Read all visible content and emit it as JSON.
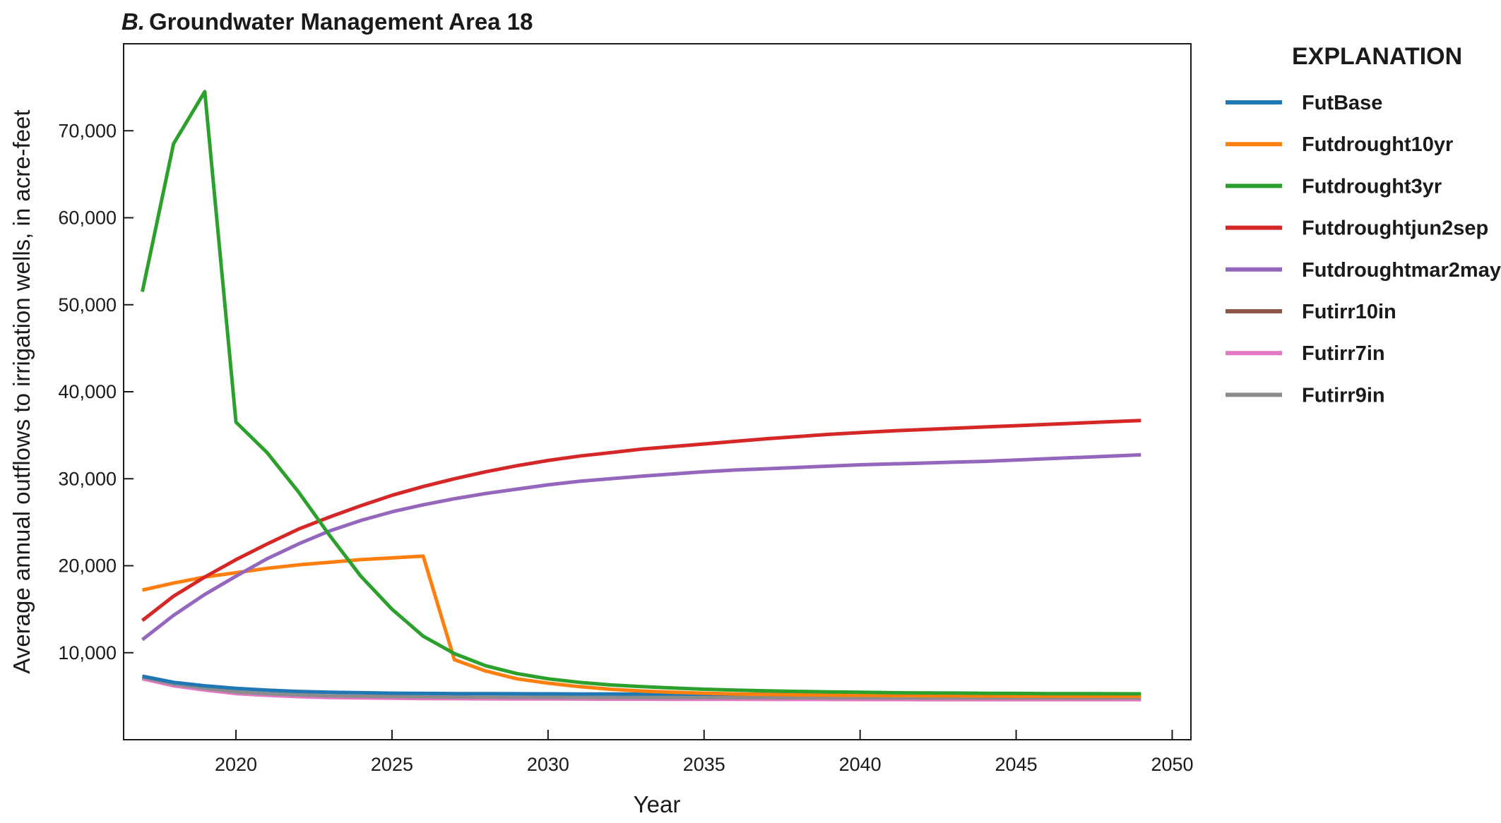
{
  "chart_data": {
    "type": "line",
    "title_prefix": "B.",
    "title": "Groundwater Management Area 18",
    "xlabel": "Year",
    "ylabel": "Average annual outflows to irrigation wells, in acre-feet",
    "xlim": [
      2016.4,
      2050.6
    ],
    "ylim": [
      0,
      80000
    ],
    "xticks": [
      2020,
      2025,
      2030,
      2035,
      2040,
      2045,
      2050
    ],
    "yticks": [
      10000,
      20000,
      30000,
      40000,
      50000,
      60000,
      70000
    ],
    "xtick_labels": [
      "2020",
      "2025",
      "2030",
      "2035",
      "2040",
      "2045",
      "2050"
    ],
    "ytick_labels": [
      "10,000",
      "20,000",
      "30,000",
      "40,000",
      "50,000",
      "60,000",
      "70,000"
    ],
    "legend_title": "EXPLANATION",
    "legend_position": "right",
    "x": [
      2017,
      2018,
      2019,
      2020,
      2021,
      2022,
      2023,
      2024,
      2025,
      2026,
      2027,
      2028,
      2029,
      2030,
      2031,
      2032,
      2033,
      2034,
      2035,
      2036,
      2037,
      2038,
      2039,
      2040,
      2041,
      2042,
      2043,
      2044,
      2045,
      2046,
      2047,
      2048,
      2049
    ],
    "series": [
      {
        "name": "FutBase",
        "color": "#1f77b4",
        "values": [
          7300,
          6600,
          6200,
          5900,
          5700,
          5550,
          5450,
          5400,
          5350,
          5320,
          5300,
          5290,
          5280,
          5270,
          5260,
          5250,
          5245,
          5240,
          5235,
          5230,
          5225,
          5220,
          5215,
          5210,
          5205,
          5200,
          5200,
          5200,
          5200,
          5200,
          5200,
          5200,
          5200
        ]
      },
      {
        "name": "Futdrought10yr",
        "color": "#ff7f0e",
        "values": [
          17200,
          18000,
          18700,
          19200,
          19700,
          20100,
          20400,
          20700,
          20900,
          21100,
          9200,
          7900,
          7000,
          6500,
          6100,
          5800,
          5600,
          5450,
          5350,
          5250,
          5200,
          5150,
          5120,
          5100,
          5080,
          5060,
          5050,
          5040,
          5030,
          5020,
          5010,
          5005,
          5000
        ]
      },
      {
        "name": "Futdrought3yr",
        "color": "#2ca02c",
        "values": [
          51500,
          68500,
          74500,
          36500,
          33000,
          28500,
          23500,
          18800,
          15000,
          11900,
          9900,
          8500,
          7600,
          7000,
          6600,
          6300,
          6100,
          5950,
          5800,
          5700,
          5620,
          5550,
          5500,
          5450,
          5400,
          5380,
          5360,
          5340,
          5320,
          5300,
          5290,
          5280,
          5270
        ]
      },
      {
        "name": "Futdroughtjun2sep",
        "color": "#d62728",
        "values": [
          13700,
          16500,
          18700,
          20700,
          22500,
          24200,
          25600,
          26900,
          28100,
          29100,
          30000,
          30800,
          31500,
          32100,
          32600,
          33000,
          33400,
          33700,
          34000,
          34300,
          34600,
          34850,
          35100,
          35300,
          35500,
          35650,
          35800,
          35950,
          36100,
          36250,
          36400,
          36550,
          36700
        ]
      },
      {
        "name": "Futdroughtmar2may",
        "color": "#9467bd",
        "values": [
          11500,
          14300,
          16700,
          18800,
          20800,
          22500,
          24000,
          25200,
          26200,
          27000,
          27700,
          28300,
          28800,
          29300,
          29700,
          30000,
          30300,
          30550,
          30800,
          31000,
          31150,
          31300,
          31450,
          31600,
          31700,
          31800,
          31900,
          32000,
          32150,
          32300,
          32450,
          32600,
          32750
        ]
      },
      {
        "name": "Futirr10in",
        "color": "#8c564b",
        "values": [
          7100,
          6300,
          5800,
          5400,
          5200,
          5050,
          4950,
          4900,
          4860,
          4830,
          4810,
          4800,
          4790,
          4780,
          4770,
          4760,
          4755,
          4750,
          4745,
          4740,
          4735,
          4730,
          4725,
          4720,
          4715,
          4710,
          4710,
          4710,
          4710,
          4710,
          4710,
          4710,
          4710
        ]
      },
      {
        "name": "Futirr7in",
        "color": "#e377c2",
        "values": [
          7000,
          6200,
          5700,
          5300,
          5100,
          4950,
          4850,
          4800,
          4760,
          4730,
          4710,
          4700,
          4690,
          4680,
          4670,
          4660,
          4655,
          4650,
          4645,
          4640,
          4635,
          4630,
          4625,
          4620,
          4615,
          4610,
          4610,
          4610,
          4610,
          4610,
          4610,
          4610,
          4610
        ]
      },
      {
        "name": "Futirr9in",
        "color": "#8c8c8c",
        "values": [
          7200,
          6400,
          5900,
          5500,
          5300,
          5150,
          5050,
          5000,
          4960,
          4930,
          4910,
          4900,
          4890,
          4880,
          4870,
          4860,
          4855,
          4850,
          4845,
          4840,
          4835,
          4830,
          4825,
          4820,
          4815,
          4810,
          4810,
          4810,
          4810,
          4810,
          4810,
          4810,
          4810
        ]
      }
    ]
  }
}
